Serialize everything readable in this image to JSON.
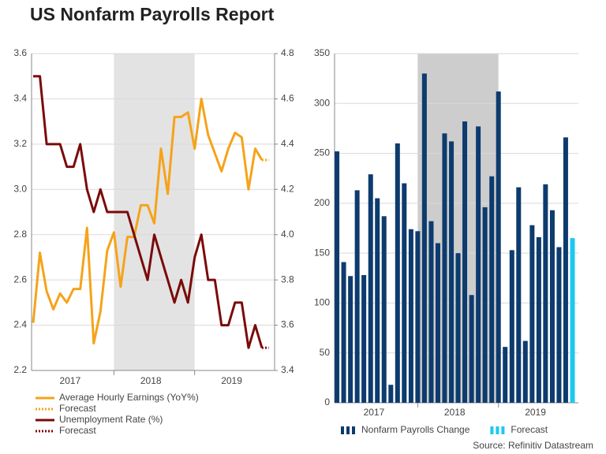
{
  "title": "US Nonfarm Payrolls Report",
  "source": "Source: Refinitiv Datastream",
  "chart_data": [
    {
      "type": "line",
      "x": [
        2017,
        2017.083,
        2017.167,
        2017.25,
        2017.333,
        2017.417,
        2017.5,
        2017.583,
        2017.667,
        2017.75,
        2017.833,
        2017.917,
        2018,
        2018.083,
        2018.167,
        2018.25,
        2018.333,
        2018.417,
        2018.5,
        2018.583,
        2018.667,
        2018.75,
        2018.833,
        2018.917,
        2019,
        2019.083,
        2019.167,
        2019.25,
        2019.333,
        2019.417,
        2019.5,
        2019.583,
        2019.667,
        2019.75,
        2019.833,
        2019.917
      ],
      "xlim": [
        2016.98,
        2019.99
      ],
      "xticks": [
        {
          "value": 2017.458,
          "label": "2017"
        },
        {
          "value": 2018.458,
          "label": "2018"
        },
        {
          "value": 2019.458,
          "label": "2019"
        }
      ],
      "shade": {
        "range": [
          2018,
          2019
        ],
        "color": "#e3e3e3"
      },
      "ylim": [
        2.2,
        3.6
      ],
      "yticks": [
        2.2,
        2.4,
        2.6,
        2.8,
        {
          "value": 3,
          "label": "3.0"
        },
        3.2,
        3.4,
        3.6
      ],
      "y2lim": [
        3.4,
        4.8
      ],
      "y2ticks": [
        3.4,
        3.6,
        3.8,
        {
          "value": 4,
          "label": "4.0"
        },
        4.2,
        4.4,
        4.6,
        4.8
      ],
      "grid": true,
      "series": [
        {
          "name": "Average Hourly Earnings (YoY%)",
          "color": "#f5a31a",
          "values": [
            2.41,
            2.72,
            2.55,
            2.47,
            2.54,
            2.5,
            2.56,
            2.56,
            2.83,
            2.32,
            2.46,
            2.73,
            2.81,
            2.57,
            2.79,
            2.79,
            2.93,
            2.93,
            2.85,
            3.18,
            2.98,
            3.32,
            3.32,
            3.34,
            3.18,
            3.4,
            3.24,
            3.16,
            3.08,
            3.18,
            3.25,
            3.23,
            3.0,
            3.18,
            3.13,
            null
          ]
        },
        {
          "name": "Forecast",
          "color": "#f5a31a",
          "dashed": true,
          "values": [
            null,
            null,
            null,
            null,
            null,
            null,
            null,
            null,
            null,
            null,
            null,
            null,
            null,
            null,
            null,
            null,
            null,
            null,
            null,
            null,
            null,
            null,
            null,
            null,
            null,
            null,
            null,
            null,
            null,
            null,
            null,
            null,
            null,
            null,
            3.13,
            3.13
          ]
        },
        {
          "name": "Unemployment Rate (%)",
          "color": "#7b0a0a",
          "axis": "y2",
          "values": [
            4.7,
            4.7,
            4.4,
            4.4,
            4.4,
            4.3,
            4.3,
            4.4,
            4.2,
            4.1,
            4.2,
            4.1,
            4.1,
            4.1,
            4.1,
            4.0,
            3.9,
            3.8,
            4.0,
            3.9,
            3.8,
            3.7,
            3.8,
            3.7,
            3.9,
            4.0,
            3.8,
            3.8,
            3.6,
            3.6,
            3.7,
            3.7,
            3.5,
            3.6,
            3.5,
            null
          ]
        },
        {
          "name": "Forecast",
          "color": "#7b0a0a",
          "axis": "y2",
          "dashed": true,
          "values": [
            null,
            null,
            null,
            null,
            null,
            null,
            null,
            null,
            null,
            null,
            null,
            null,
            null,
            null,
            null,
            null,
            null,
            null,
            null,
            null,
            null,
            null,
            null,
            null,
            null,
            null,
            null,
            null,
            null,
            null,
            null,
            null,
            null,
            null,
            3.5,
            3.5
          ]
        }
      ]
    },
    {
      "type": "bar",
      "x": [
        2017,
        2017.083,
        2017.167,
        2017.25,
        2017.333,
        2017.417,
        2017.5,
        2017.583,
        2017.667,
        2017.75,
        2017.833,
        2017.917,
        2018,
        2018.083,
        2018.167,
        2018.25,
        2018.333,
        2018.417,
        2018.5,
        2018.583,
        2018.667,
        2018.75,
        2018.833,
        2018.917,
        2019,
        2019.083,
        2019.167,
        2019.25,
        2019.333,
        2019.417,
        2019.5,
        2019.583,
        2019.667,
        2019.75,
        2019.833,
        2019.917
      ],
      "xlim": [
        2016.97,
        2019.99
      ],
      "xticks": [
        {
          "value": 2017.458,
          "label": "2017"
        },
        {
          "value": 2018.458,
          "label": "2018"
        },
        {
          "value": 2019.458,
          "label": "2019"
        }
      ],
      "shade": {
        "range": [
          2018,
          2019
        ],
        "color": "#cdcdcd"
      },
      "ylim": [
        0,
        350
      ],
      "yticks": [
        0,
        50,
        100,
        150,
        200,
        250,
        300,
        350
      ],
      "grid": true,
      "series": [
        {
          "name": "Nonfarm Payrolls Change",
          "color": "#0d3b6e",
          "values": [
            252,
            141,
            127,
            213,
            128,
            229,
            205,
            187,
            18,
            260,
            220,
            174,
            172,
            330,
            182,
            160,
            270,
            262,
            150,
            282,
            108,
            277,
            196,
            227,
            312,
            56,
            153,
            216,
            62,
            178,
            166,
            219,
            193,
            156,
            266,
            null
          ]
        },
        {
          "name": "Forecast",
          "color": "#1ec8f0",
          "values": [
            null,
            null,
            null,
            null,
            null,
            null,
            null,
            null,
            null,
            null,
            null,
            null,
            null,
            null,
            null,
            null,
            null,
            null,
            null,
            null,
            null,
            null,
            null,
            null,
            null,
            null,
            null,
            null,
            null,
            null,
            null,
            null,
            null,
            null,
            null,
            165
          ]
        }
      ]
    }
  ]
}
